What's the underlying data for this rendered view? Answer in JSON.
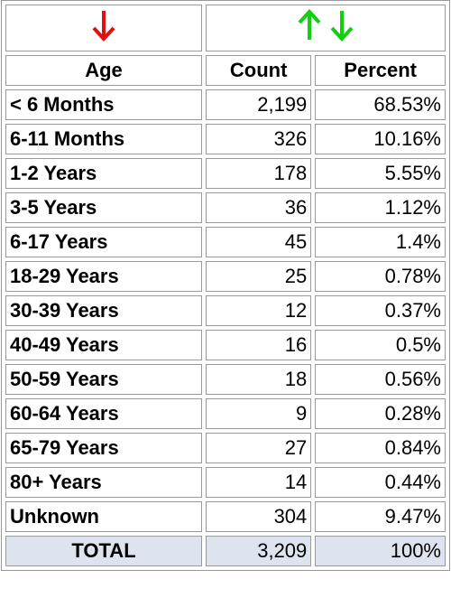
{
  "table": {
    "header": [
      "Age",
      "Count",
      "Percent"
    ],
    "rows": [
      [
        "< 6 Months",
        "2,199",
        "68.53%"
      ],
      [
        "6-11 Months",
        "326",
        "10.16%"
      ],
      [
        "1-2 Years",
        "178",
        "5.55%"
      ],
      [
        "3-5 Years",
        "36",
        "1.12%"
      ],
      [
        "6-17 Years",
        "45",
        "1.4%"
      ],
      [
        "18-29 Years",
        "25",
        "0.78%"
      ],
      [
        "30-39 Years",
        "12",
        "0.37%"
      ],
      [
        "40-49 Years",
        "16",
        "0.5%"
      ],
      [
        "50-59 Years",
        "18",
        "0.56%"
      ],
      [
        "60-64 Years",
        "9",
        "0.28%"
      ],
      [
        "65-79 Years",
        "27",
        "0.84%"
      ],
      [
        "80+ Years",
        "14",
        "0.44%"
      ],
      [
        "Unknown",
        "304",
        "9.47%"
      ]
    ],
    "total": [
      "TOTAL",
      "3,209",
      "100%"
    ]
  }
}
